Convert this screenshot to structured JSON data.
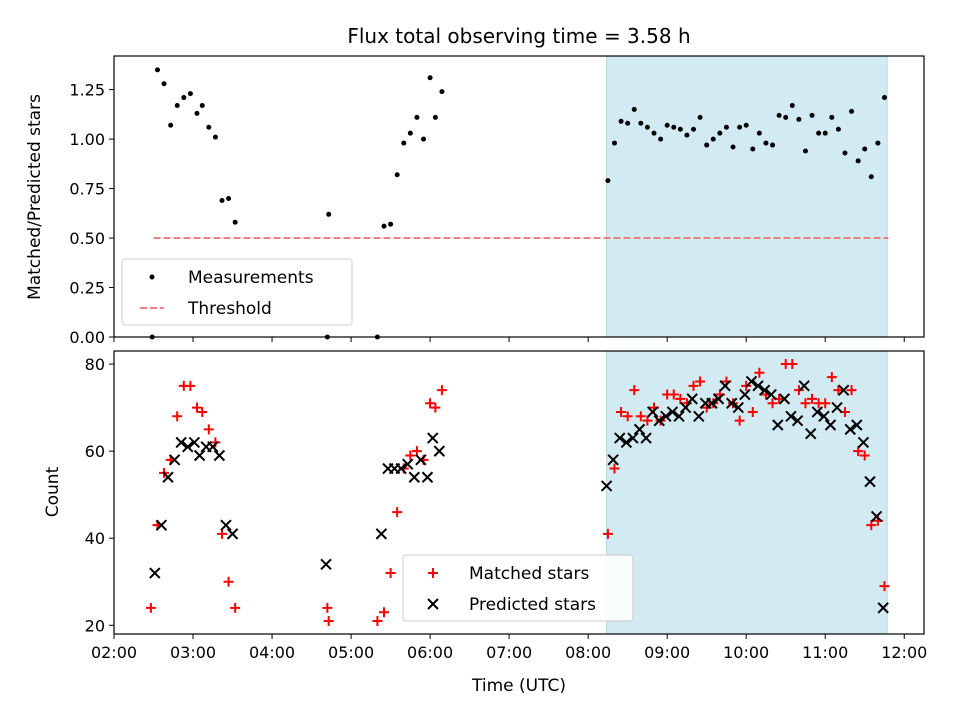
{
  "chart_data": [
    {
      "type": "scatter",
      "title": "Flux total observing time = 3.58 h",
      "ylabel": "Matched/Predicted stars",
      "xlabel": "",
      "xlim": [
        "02:00",
        "12:15"
      ],
      "ylim": [
        0,
        1.42
      ],
      "yticks": [
        "0.00",
        "0.25",
        "0.50",
        "0.75",
        "1.00",
        "1.25"
      ],
      "shaded_region": {
        "from": "08:14",
        "to": "11:47",
        "color": "#add8e6"
      },
      "legend_position": "lower-left",
      "series": [
        {
          "name": "Measurements",
          "marker": "dot",
          "color": "#000000",
          "points": [
            [
              "02:29",
              0.0
            ],
            [
              "02:33",
              1.35
            ],
            [
              "02:38",
              1.28
            ],
            [
              "02:43",
              1.07
            ],
            [
              "02:48",
              1.17
            ],
            [
              "02:53",
              1.21
            ],
            [
              "02:58",
              1.23
            ],
            [
              "03:03",
              1.13
            ],
            [
              "03:07",
              1.17
            ],
            [
              "03:12",
              1.06
            ],
            [
              "03:17",
              1.01
            ],
            [
              "03:22",
              0.69
            ],
            [
              "03:27",
              0.7
            ],
            [
              "03:32",
              0.58
            ],
            [
              "04:42",
              0.0
            ],
            [
              "04:43",
              0.62
            ],
            [
              "05:20",
              0.0
            ],
            [
              "05:25",
              0.56
            ],
            [
              "05:30",
              0.57
            ],
            [
              "05:35",
              0.82
            ],
            [
              "05:40",
              0.98
            ],
            [
              "05:45",
              1.03
            ],
            [
              "05:50",
              1.11
            ],
            [
              "05:55",
              1.0
            ],
            [
              "06:00",
              1.31
            ],
            [
              "06:04",
              1.11
            ],
            [
              "06:09",
              1.24
            ],
            [
              "08:15",
              0.79
            ],
            [
              "08:20",
              0.98
            ],
            [
              "08:25",
              1.09
            ],
            [
              "08:30",
              1.08
            ],
            [
              "08:35",
              1.15
            ],
            [
              "08:40",
              1.08
            ],
            [
              "08:45",
              1.06
            ],
            [
              "08:50",
              1.03
            ],
            [
              "08:55",
              1.0
            ],
            [
              "09:00",
              1.07
            ],
            [
              "09:05",
              1.06
            ],
            [
              "09:10",
              1.05
            ],
            [
              "09:15",
              1.02
            ],
            [
              "09:20",
              1.05
            ],
            [
              "09:25",
              1.11
            ],
            [
              "09:30",
              0.97
            ],
            [
              "09:35",
              1.0
            ],
            [
              "09:40",
              1.03
            ],
            [
              "09:45",
              1.06
            ],
            [
              "09:50",
              0.96
            ],
            [
              "09:55",
              1.06
            ],
            [
              "10:00",
              1.07
            ],
            [
              "10:05",
              0.95
            ],
            [
              "10:10",
              1.03
            ],
            [
              "10:15",
              0.98
            ],
            [
              "10:20",
              0.97
            ],
            [
              "10:25",
              1.12
            ],
            [
              "10:30",
              1.11
            ],
            [
              "10:35",
              1.17
            ],
            [
              "10:40",
              1.1
            ],
            [
              "10:45",
              0.94
            ],
            [
              "10:50",
              1.12
            ],
            [
              "10:55",
              1.03
            ],
            [
              "11:00",
              1.03
            ],
            [
              "11:05",
              1.11
            ],
            [
              "11:10",
              1.05
            ],
            [
              "11:15",
              0.93
            ],
            [
              "11:20",
              1.14
            ],
            [
              "11:25",
              0.89
            ],
            [
              "11:30",
              0.95
            ],
            [
              "11:35",
              0.81
            ],
            [
              "11:40",
              0.98
            ],
            [
              "11:45",
              1.21
            ]
          ]
        },
        {
          "name": "Threshold",
          "marker": "dashed-line",
          "color": "#f08080",
          "points": [
            [
              "02:30",
              0.5
            ],
            [
              "11:48",
              0.5
            ]
          ]
        }
      ]
    },
    {
      "type": "scatter",
      "title": "",
      "ylabel": "Count",
      "xlabel": "Time (UTC)",
      "xlim": [
        "02:00",
        "12:15"
      ],
      "ylim": [
        18,
        83
      ],
      "yticks": [
        "20",
        "40",
        "60",
        "80"
      ],
      "xticks": [
        "02:00",
        "03:00",
        "04:00",
        "05:00",
        "06:00",
        "07:00",
        "08:00",
        "09:00",
        "10:00",
        "11:00",
        "12:00"
      ],
      "shaded_region": {
        "from": "08:14",
        "to": "11:47",
        "color": "#add8e6"
      },
      "legend_position": "lower-center",
      "series": [
        {
          "name": "Matched stars",
          "marker": "plus",
          "color": "#ff0000",
          "points": [
            [
              "02:28",
              24
            ],
            [
              "02:33",
              43
            ],
            [
              "02:38",
              55
            ],
            [
              "02:43",
              58
            ],
            [
              "02:48",
              68
            ],
            [
              "02:53",
              75
            ],
            [
              "02:58",
              75
            ],
            [
              "03:03",
              70
            ],
            [
              "03:07",
              69
            ],
            [
              "03:12",
              65
            ],
            [
              "03:17",
              62
            ],
            [
              "03:22",
              41
            ],
            [
              "03:27",
              30
            ],
            [
              "03:32",
              24
            ],
            [
              "04:42",
              24
            ],
            [
              "04:43",
              21
            ],
            [
              "05:20",
              21
            ],
            [
              "05:25",
              23
            ],
            [
              "05:30",
              32
            ],
            [
              "05:35",
              46
            ],
            [
              "05:40",
              56
            ],
            [
              "05:45",
              59
            ],
            [
              "05:50",
              60
            ],
            [
              "05:55",
              58
            ],
            [
              "06:00",
              71
            ],
            [
              "06:04",
              70
            ],
            [
              "06:09",
              74
            ],
            [
              "08:15",
              41
            ],
            [
              "08:20",
              56
            ],
            [
              "08:25",
              69
            ],
            [
              "08:30",
              68
            ],
            [
              "08:35",
              74
            ],
            [
              "08:40",
              68
            ],
            [
              "08:45",
              67
            ],
            [
              "08:50",
              70
            ],
            [
              "08:55",
              67
            ],
            [
              "09:00",
              73
            ],
            [
              "09:05",
              73
            ],
            [
              "09:10",
              72
            ],
            [
              "09:15",
              71
            ],
            [
              "09:20",
              75
            ],
            [
              "09:25",
              76
            ],
            [
              "09:30",
              70
            ],
            [
              "09:35",
              71
            ],
            [
              "09:40",
              73
            ],
            [
              "09:45",
              76
            ],
            [
              "09:50",
              71
            ],
            [
              "09:55",
              67
            ],
            [
              "10:00",
              75
            ],
            [
              "10:05",
              69
            ],
            [
              "10:10",
              78
            ],
            [
              "10:15",
              73
            ],
            [
              "10:20",
              71
            ],
            [
              "10:25",
              72
            ],
            [
              "10:30",
              80
            ],
            [
              "10:35",
              80
            ],
            [
              "10:40",
              74
            ],
            [
              "10:45",
              71
            ],
            [
              "10:50",
              72
            ],
            [
              "10:55",
              71
            ],
            [
              "11:00",
              71
            ],
            [
              "11:05",
              77
            ],
            [
              "11:10",
              74
            ],
            [
              "11:15",
              69
            ],
            [
              "11:20",
              74
            ],
            [
              "11:25",
              60
            ],
            [
              "11:30",
              59
            ],
            [
              "11:35",
              43
            ],
            [
              "11:40",
              44
            ],
            [
              "11:45",
              29
            ]
          ]
        },
        {
          "name": "Predicted stars",
          "marker": "x",
          "color": "#000000",
          "points": [
            [
              "02:31",
              32
            ],
            [
              "02:36",
              43
            ],
            [
              "02:41",
              54
            ],
            [
              "02:46",
              58
            ],
            [
              "02:51",
              62
            ],
            [
              "02:56",
              61
            ],
            [
              "03:01",
              62
            ],
            [
              "03:05",
              59
            ],
            [
              "03:10",
              61
            ],
            [
              "03:15",
              61
            ],
            [
              "03:20",
              59
            ],
            [
              "03:25",
              43
            ],
            [
              "03:30",
              41
            ],
            [
              "04:41",
              34
            ],
            [
              "05:23",
              41
            ],
            [
              "05:28",
              56
            ],
            [
              "05:33",
              56
            ],
            [
              "05:38",
              56
            ],
            [
              "05:43",
              57
            ],
            [
              "05:48",
              54
            ],
            [
              "05:53",
              58
            ],
            [
              "05:58",
              54
            ],
            [
              "06:02",
              63
            ],
            [
              "06:07",
              60
            ],
            [
              "08:14",
              52
            ],
            [
              "08:19",
              58
            ],
            [
              "08:24",
              63
            ],
            [
              "08:29",
              62
            ],
            [
              "08:34",
              63
            ],
            [
              "08:39",
              65
            ],
            [
              "08:44",
              63
            ],
            [
              "08:49",
              69
            ],
            [
              "08:54",
              67
            ],
            [
              "08:59",
              68
            ],
            [
              "09:04",
              69
            ],
            [
              "09:09",
              68
            ],
            [
              "09:14",
              70
            ],
            [
              "09:19",
              72
            ],
            [
              "09:24",
              68
            ],
            [
              "09:29",
              71
            ],
            [
              "09:34",
              71
            ],
            [
              "09:39",
              72
            ],
            [
              "09:44",
              75
            ],
            [
              "09:49",
              71
            ],
            [
              "09:54",
              70
            ],
            [
              "09:59",
              73
            ],
            [
              "10:04",
              76
            ],
            [
              "10:09",
              75
            ],
            [
              "10:14",
              74
            ],
            [
              "10:19",
              73
            ],
            [
              "10:24",
              66
            ],
            [
              "10:29",
              72
            ],
            [
              "10:34",
              68
            ],
            [
              "10:39",
              67
            ],
            [
              "10:44",
              75
            ],
            [
              "10:49",
              64
            ],
            [
              "10:54",
              69
            ],
            [
              "10:59",
              68
            ],
            [
              "11:04",
              66
            ],
            [
              "11:09",
              70
            ],
            [
              "11:14",
              74
            ],
            [
              "11:19",
              65
            ],
            [
              "11:24",
              66
            ],
            [
              "11:29",
              62
            ],
            [
              "11:34",
              53
            ],
            [
              "11:39",
              45
            ],
            [
              "11:44",
              24
            ]
          ]
        }
      ]
    }
  ]
}
